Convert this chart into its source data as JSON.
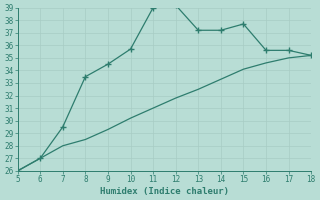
{
  "xlabel": "Humidex (Indice chaleur)",
  "x": [
    5,
    6,
    7,
    8,
    9,
    10,
    11,
    12,
    13,
    14,
    15,
    16,
    17,
    18
  ],
  "y_upper": [
    26,
    27,
    29.5,
    33.5,
    34.5,
    35.7,
    39.0,
    39.2,
    37.2,
    37.2,
    37.7,
    35.6,
    35.6,
    35.2
  ],
  "y_lower": [
    26,
    27,
    28.0,
    28.5,
    29.3,
    30.2,
    31.0,
    31.8,
    32.5,
    33.3,
    34.1,
    34.6,
    35.0,
    35.2
  ],
  "line_color": "#2e7d6e",
  "bg_color": "#b8ddd5",
  "grid_color": "#a8ccc4",
  "text_color": "#2e7d6e",
  "ylim": [
    26,
    39
  ],
  "xlim": [
    5,
    18
  ],
  "yticks": [
    26,
    27,
    28,
    29,
    30,
    31,
    32,
    33,
    34,
    35,
    36,
    37,
    38,
    39
  ],
  "xticks": [
    5,
    6,
    7,
    8,
    9,
    10,
    11,
    12,
    13,
    14,
    15,
    16,
    17,
    18
  ]
}
